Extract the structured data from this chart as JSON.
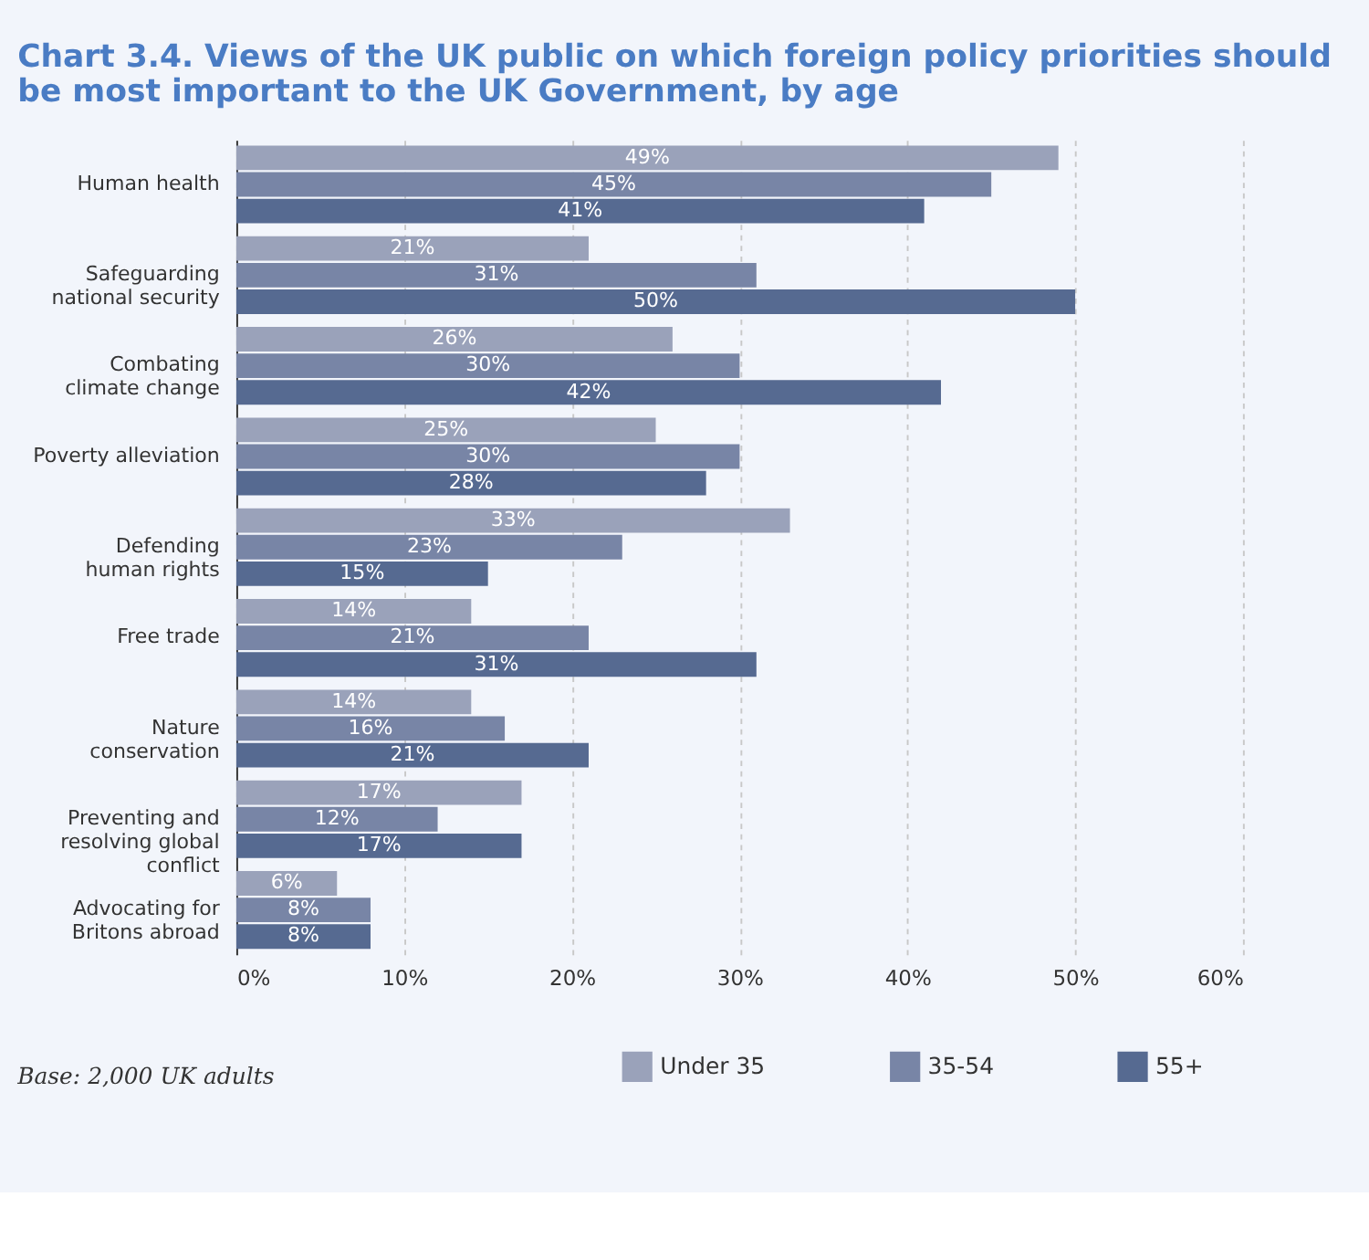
{
  "chart_data": {
    "type": "bar",
    "orientation": "horizontal",
    "title": "Chart 3.4. Views of the UK public on which foreign policy priorities should be most important to the UK Government, by age",
    "categories": [
      "Human health",
      "Safeguarding\nnational security",
      "Combating\nclimate change",
      "Poverty alleviation",
      "Defending\nhuman rights",
      "Free trade",
      "Nature\nconservation",
      "Preventing and\nresolving global\nconflict",
      "Advocating for\nBritons abroad"
    ],
    "series": [
      {
        "name": "Under 35",
        "color": "#9aa2ba",
        "values": [
          49,
          21,
          26,
          25,
          33,
          14,
          14,
          17,
          6
        ],
        "value_labels": [
          "49%",
          "21%",
          "26%",
          "25%",
          "33%",
          "14%",
          "14%",
          "17%",
          "6%"
        ]
      },
      {
        "name": "35-54",
        "color": "#7885a6",
        "values": [
          45,
          31,
          30,
          30,
          23,
          21,
          16,
          12,
          8
        ],
        "value_labels": [
          "45%",
          "31%",
          "30%",
          "30%",
          "23%",
          "21%",
          "16%",
          "12%",
          "8%"
        ]
      },
      {
        "name": "55+",
        "color": "#566a91",
        "values": [
          41,
          50,
          42,
          28,
          15,
          31,
          21,
          17,
          8
        ],
        "value_labels": [
          "41%",
          "50%",
          "42%",
          "28%",
          "15%",
          "31%",
          "21%",
          "17%",
          "8%"
        ]
      }
    ],
    "xlim": [
      0,
      60
    ],
    "xticks": [
      {
        "value": 0,
        "label": "0%"
      },
      {
        "value": 10,
        "label": "10%"
      },
      {
        "value": 20,
        "label": "20%"
      },
      {
        "value": 30,
        "label": "30%"
      },
      {
        "value": 40,
        "label": "40%"
      },
      {
        "value": 50,
        "label": "50%"
      },
      {
        "value": 60,
        "label": "60%"
      }
    ],
    "grid": "x",
    "legend": "bottom right",
    "annotations": [
      "Base: 2,000 UK adults"
    ]
  }
}
